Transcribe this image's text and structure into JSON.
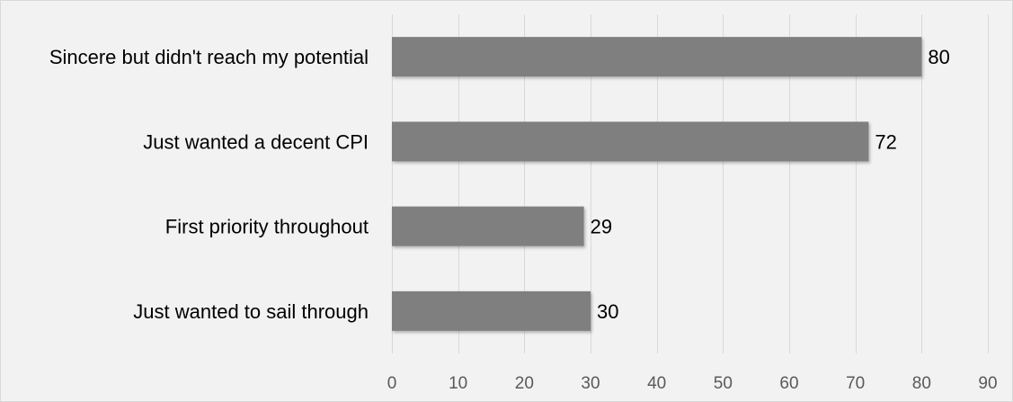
{
  "chart_data": {
    "type": "bar",
    "orientation": "horizontal",
    "categories": [
      "Sincere but didn't reach my potential",
      "Just wanted a decent CPI",
      "First priority throughout",
      "Just wanted to sail through"
    ],
    "values": [
      80,
      72,
      29,
      30
    ],
    "value_labels": [
      "80",
      "72",
      "29",
      "30"
    ],
    "xlim": [
      0,
      90
    ],
    "x_ticks": [
      0,
      10,
      20,
      30,
      40,
      50,
      60,
      70,
      80,
      90
    ],
    "x_tick_labels": [
      "0",
      "10",
      "20",
      "30",
      "40",
      "50",
      "60",
      "70",
      "80",
      "90"
    ],
    "grid": true,
    "legend": "none",
    "title": "",
    "xlabel": "",
    "ylabel": "",
    "colors": {
      "bar": "#7f7f7f",
      "background": "#f2f2f2",
      "grid": "#d9d9d9",
      "tick_text": "#595959"
    }
  }
}
